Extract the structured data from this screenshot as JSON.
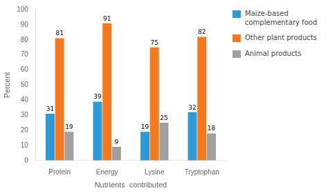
{
  "chart_data": {
    "type": "bar",
    "categories": [
      "Protein",
      "Energy",
      "Lysine",
      "Tryptophan"
    ],
    "series": [
      {
        "name": "Maize-based\ncomplementary food",
        "color": "#2E9BD4",
        "values": [
          31,
          39,
          19,
          32
        ]
      },
      {
        "name": "Other plant products",
        "color": "#F47920",
        "values": [
          81,
          91,
          75,
          82
        ]
      },
      {
        "name": "Animal products",
        "color": "#A0A0A0",
        "values": [
          19,
          9,
          25,
          18
        ]
      }
    ],
    "xlabel": "Nutrients  contributed",
    "ylabel": "Percent",
    "ylim": [
      0,
      100
    ],
    "yticks": [
      0,
      10,
      20,
      30,
      40,
      50,
      60,
      70,
      80,
      90,
      100
    ],
    "grid": false,
    "legend": "right",
    "data_labels": true
  }
}
